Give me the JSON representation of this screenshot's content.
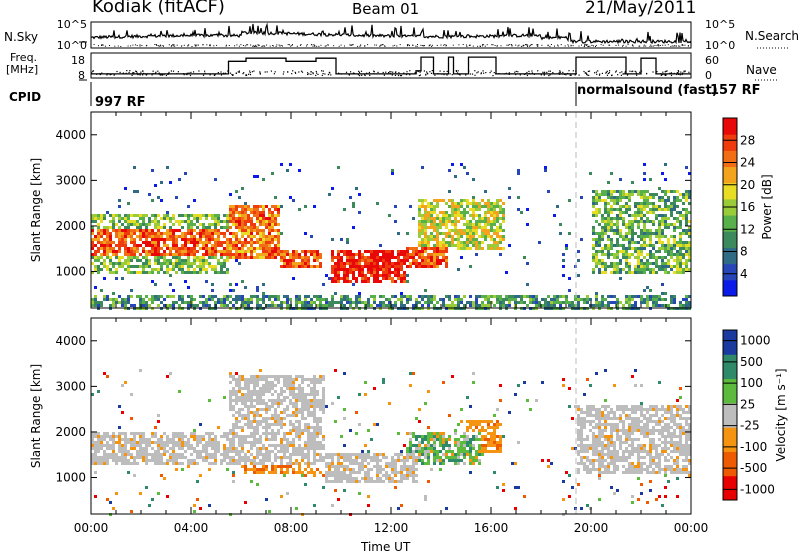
{
  "header": {
    "station": "Kodiak (fitACF)",
    "beam": "Beam 01",
    "date": "21/May/2011"
  },
  "left_labels": {
    "nsky": "N.Sky",
    "freq_line1": "Freq.",
    "freq_line2": "[MHz]",
    "cpid": "CPID"
  },
  "right_labels": {
    "nsearch": "N.Search",
    "nave": "Nave"
  },
  "cpid_labels": {
    "left": "997 RF",
    "right_mode": "normalsound (fast)",
    "right_cpid": "157 RF"
  },
  "colors": {
    "power_scale": [
      "#0a1ae8",
      "#2747b8",
      "#2f6b84",
      "#3c8a5c",
      "#58b04a",
      "#9acc3a",
      "#e8dc24",
      "#f4a41c",
      "#f26e14",
      "#ee3c0c",
      "#e80808"
    ],
    "velocity_scale": [
      "#e80000",
      "#ee5a00",
      "#f49410",
      "#bdbdbd",
      "#5cba3c",
      "#2f8a6a",
      "#1a3aa0"
    ]
  },
  "chart_data": [
    {
      "type": "line",
      "name": "noise-sky-search",
      "ylabel_left": "N.Sky",
      "ylabel_right": "N.Search",
      "yscale": "log",
      "ylim": [
        1,
        100000
      ],
      "left_ticks": [
        "10^5",
        "10^0"
      ],
      "right_ticks": [
        "10^5",
        "10^0"
      ],
      "xlim": [
        0,
        24
      ]
    },
    {
      "type": "line",
      "name": "frequency-nave",
      "ylabel_left": "Freq. [MHz]",
      "ylabel_right": "Nave",
      "ylim_left": [
        8,
        18
      ],
      "ylim_right": [
        0,
        60
      ],
      "left_ticks": [
        "18",
        "8"
      ],
      "right_ticks": [
        "60",
        "0"
      ],
      "freq_steps": [
        [
          0,
          9
        ],
        [
          5.5,
          9
        ],
        [
          5.5,
          15
        ],
        [
          6.2,
          15
        ],
        [
          6.2,
          16.5
        ],
        [
          7.8,
          16.5
        ],
        [
          7.8,
          15
        ],
        [
          9.0,
          15
        ],
        [
          9.0,
          16.5
        ],
        [
          9.8,
          16.5
        ],
        [
          9.8,
          9
        ],
        [
          13.0,
          9
        ],
        [
          13.0,
          10.5
        ],
        [
          13.2,
          10.5
        ],
        [
          13.2,
          17
        ],
        [
          13.7,
          17
        ],
        [
          13.7,
          9
        ],
        [
          14.3,
          9
        ],
        [
          14.3,
          17
        ],
        [
          14.5,
          17
        ],
        [
          14.5,
          9
        ],
        [
          15.1,
          9
        ],
        [
          15.1,
          17
        ],
        [
          16.2,
          17
        ],
        [
          16.2,
          9
        ],
        [
          19.4,
          9
        ],
        [
          19.4,
          17
        ],
        [
          21.4,
          17
        ],
        [
          21.4,
          9
        ],
        [
          22.0,
          9
        ],
        [
          22.0,
          16.5
        ],
        [
          22.6,
          16.5
        ],
        [
          22.6,
          9
        ],
        [
          24,
          9
        ]
      ]
    },
    {
      "type": "heatmap",
      "name": "power",
      "ylabel": "Slant Range [km]",
      "ylim": [
        200,
        4500
      ],
      "yticks": [
        1000,
        2000,
        3000,
        4000
      ],
      "xlim": [
        0,
        24
      ],
      "colorbar_label": "Power [dB]",
      "colorbar_range": [
        0,
        32
      ],
      "colorbar_ticks": [
        4,
        8,
        12,
        16,
        20,
        24,
        28
      ],
      "mode_change_time": 19.4,
      "echo_bands": [
        {
          "t0": 0.0,
          "t1": 5.5,
          "r0": 1400,
          "r1": 1950,
          "level": 0.85
        },
        {
          "t0": 0.0,
          "t1": 5.5,
          "r0": 1000,
          "r1": 2300,
          "level": 0.45
        },
        {
          "t0": 5.5,
          "t1": 7.5,
          "r0": 1300,
          "r1": 2500,
          "level": 0.8
        },
        {
          "t0": 7.5,
          "t1": 9.2,
          "r0": 1100,
          "r1": 1500,
          "level": 0.85
        },
        {
          "t0": 9.5,
          "t1": 12.5,
          "r0": 800,
          "r1": 1500,
          "level": 1.0
        },
        {
          "t0": 12.5,
          "t1": 14.2,
          "r0": 1100,
          "r1": 1600,
          "level": 0.85
        },
        {
          "t0": 13.0,
          "t1": 16.5,
          "r0": 1500,
          "r1": 2600,
          "level": 0.55
        },
        {
          "t0": 20.0,
          "t1": 24.0,
          "r0": 1000,
          "r1": 2800,
          "level": 0.4
        },
        {
          "t0": 0.0,
          "t1": 24.0,
          "r0": 200,
          "r1": 500,
          "level": 0.3
        }
      ]
    },
    {
      "type": "heatmap",
      "name": "velocity",
      "ylabel": "Slant Range [km]",
      "ylim": [
        200,
        4500
      ],
      "yticks": [
        1000,
        2000,
        3000,
        4000
      ],
      "xlim": [
        0,
        24
      ],
      "xlabel": "Time UT",
      "xticks": [
        "00:00",
        "04:00",
        "08:00",
        "12:00",
        "16:00",
        "20:00",
        "00:00"
      ],
      "colorbar_label": "Velocity [m s⁻¹]",
      "colorbar_ticks": [
        "1000",
        "500",
        "100",
        "25",
        "-25",
        "-100",
        "-500",
        "-1000"
      ],
      "mode_change_time": 19.4,
      "echo_bands": [
        {
          "t0": 0.0,
          "t1": 5.5,
          "r0": 1300,
          "r1": 2000,
          "class": "ground"
        },
        {
          "t0": 5.5,
          "t1": 9.3,
          "r0": 1300,
          "r1": 3300,
          "class": "ground"
        },
        {
          "t0": 6.0,
          "t1": 9.2,
          "r0": 1100,
          "r1": 1800,
          "class": "away-slow"
        },
        {
          "t0": 9.3,
          "t1": 13.0,
          "r0": 900,
          "r1": 1600,
          "class": "ground"
        },
        {
          "t0": 12.5,
          "t1": 15.5,
          "r0": 1300,
          "r1": 2000,
          "class": "mixed"
        },
        {
          "t0": 15.0,
          "t1": 16.4,
          "r0": 1600,
          "r1": 2300,
          "class": "away-slow"
        },
        {
          "t0": 19.4,
          "t1": 24.0,
          "r0": 1100,
          "r1": 2600,
          "class": "ground"
        }
      ]
    }
  ]
}
